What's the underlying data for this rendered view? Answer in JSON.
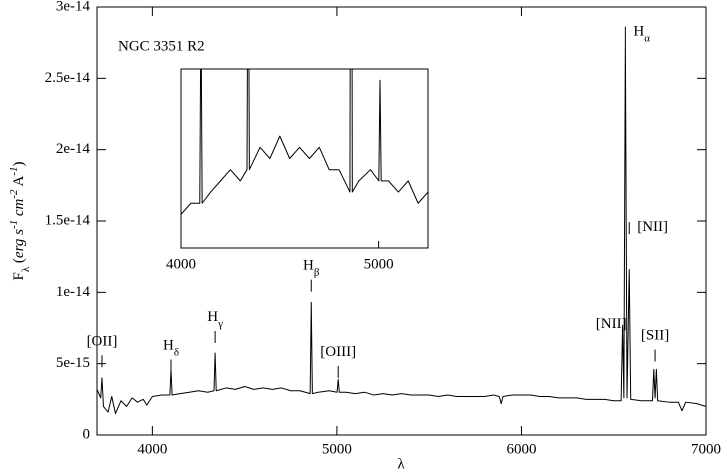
{
  "chart_data": [
    {
      "type": "line",
      "title": "NGC 3351 R2",
      "x_label": "λ",
      "y_label": [
        {
          "text": "F"
        },
        {
          "text": "λ",
          "shift": "sub"
        },
        {
          "text": " (",
          "style": "normal"
        },
        {
          "text": "erg s",
          "style": "italic"
        },
        {
          "text": "-1",
          "shift": "super"
        },
        {
          "text": " cm",
          "style": "italic"
        },
        {
          "text": "-2",
          "shift": "super"
        },
        {
          "text": " A",
          "style": "normal"
        },
        {
          "text": "-1",
          "shift": "super"
        },
        {
          "text": ")",
          "style": "normal"
        }
      ],
      "xlim": [
        3700,
        7000
      ],
      "xticks": [
        4000,
        5000,
        6000,
        7000
      ],
      "ylim": [
        0,
        3e-14
      ],
      "yticks": [
        0,
        {
          "value": 5e-15,
          "label": "5e-15"
        },
        {
          "value": 1e-14,
          "label": "1e-14"
        },
        {
          "value": 1.5e-14,
          "label": "1.5e-14"
        },
        {
          "value": 2e-14,
          "label": "2e-14"
        },
        {
          "value": 2.5e-14,
          "label": "2.5e-14"
        },
        {
          "value": 3e-14,
          "label": "3e-14"
        }
      ],
      "color": "#000000",
      "x": [
        3700,
        3720,
        3727,
        3735,
        3760,
        3780,
        3800,
        3830,
        3860,
        3890,
        3920,
        3950,
        3970,
        4000,
        4050,
        4095,
        4101,
        4107,
        4150,
        4200,
        4250,
        4300,
        4334,
        4340,
        4346,
        4400,
        4450,
        4500,
        4550,
        4600,
        4650,
        4700,
        4750,
        4800,
        4855,
        4861,
        4867,
        4900,
        4959,
        5001,
        5007,
        5013,
        5050,
        5100,
        5150,
        5200,
        5250,
        5300,
        5350,
        5400,
        5450,
        5500,
        5550,
        5600,
        5650,
        5700,
        5750,
        5800,
        5850,
        5880,
        5890,
        5900,
        5950,
        6000,
        6050,
        6100,
        6150,
        6200,
        6250,
        6300,
        6350,
        6400,
        6450,
        6500,
        6540,
        6548,
        6555,
        6563,
        6572,
        6584,
        6592,
        6650,
        6710,
        6717,
        6724,
        6731,
        6738,
        6800,
        6850,
        6870,
        6890,
        6950,
        7000
      ],
      "values": [
        3.2e-15,
        2.6e-15,
        4e-15,
        2e-15,
        1.6e-15,
        2.7e-15,
        1.5e-15,
        2.4e-15,
        2e-15,
        2.6e-15,
        2.3e-15,
        2.5e-15,
        2.1e-15,
        2.7e-15,
        2.8e-15,
        2.8e-15,
        4.6e-15,
        2.8e-15,
        2.9e-15,
        3e-15,
        3.1e-15,
        3e-15,
        3.1e-15,
        5.75e-15,
        3.1e-15,
        3.3e-15,
        3.2e-15,
        3.4e-15,
        3.2e-15,
        3.3e-15,
        3.2e-15,
        3.3e-15,
        3.1e-15,
        3.1e-15,
        2.9e-15,
        9.3e-15,
        2.9e-15,
        3e-15,
        3.1e-15,
        3e-15,
        3.9e-15,
        3e-15,
        3e-15,
        2.9e-15,
        3e-15,
        2.8e-15,
        2.9e-15,
        2.8e-15,
        2.9e-15,
        2.8e-15,
        2.8e-15,
        2.8e-15,
        2.7e-15,
        2.8e-15,
        2.7e-15,
        2.7e-15,
        2.7e-15,
        2.7e-15,
        2.8e-15,
        2.7e-15,
        2.2e-15,
        2.7e-15,
        2.8e-15,
        2.8e-15,
        2.8e-15,
        2.7e-15,
        2.7e-15,
        2.6e-15,
        2.6e-15,
        2.6e-15,
        2.5e-15,
        2.5e-15,
        2.5e-15,
        2.4e-15,
        2.4e-15,
        7.7e-15,
        2.6e-15,
        2.78e-14,
        2.6e-15,
        1.16e-14,
        2.5e-15,
        2.4e-15,
        2.4e-15,
        4.6e-15,
        2.6e-15,
        4.6e-15,
        2.4e-15,
        2.3e-15,
        2.3e-15,
        1.7e-15,
        2.3e-15,
        2.2e-15,
        2e-15
      ],
      "annotations": [
        {
          "text": "[OII]",
          "x": 3727,
          "y": 6.5e-15,
          "anchor": "middle"
        },
        {
          "text": "H",
          "sub": "δ",
          "x": 4101,
          "y": 6.2e-15,
          "anchor": "middle"
        },
        {
          "text": "H",
          "sub": "γ",
          "x": 4340,
          "y": 8.2e-15,
          "anchor": "middle"
        },
        {
          "text": "H",
          "sub": "β",
          "x": 4861,
          "y": 1.18e-14,
          "anchor": "middle"
        },
        {
          "text": "[OIII]",
          "x": 5007,
          "y": 5.75e-15,
          "anchor": "middle"
        },
        {
          "text": "[NII]",
          "x": 6548,
          "y": 7.7e-15,
          "anchor": "end"
        },
        {
          "text": "H",
          "sub": "α",
          "x": 6563,
          "y": 2.82e-14,
          "anchor": "start"
        },
        {
          "text": "[NII]",
          "x": 6584,
          "y": 1.45e-14,
          "anchor": "start"
        },
        {
          "text": "[SII]",
          "x": 6724,
          "y": 6.9e-15,
          "anchor": "middle"
        }
      ]
    },
    {
      "type": "inset",
      "xlim": [
        4000,
        5250
      ],
      "xticks": [
        4000,
        5000
      ],
      "ylim": [
        2.4e-15,
        4e-15
      ]
    }
  ]
}
